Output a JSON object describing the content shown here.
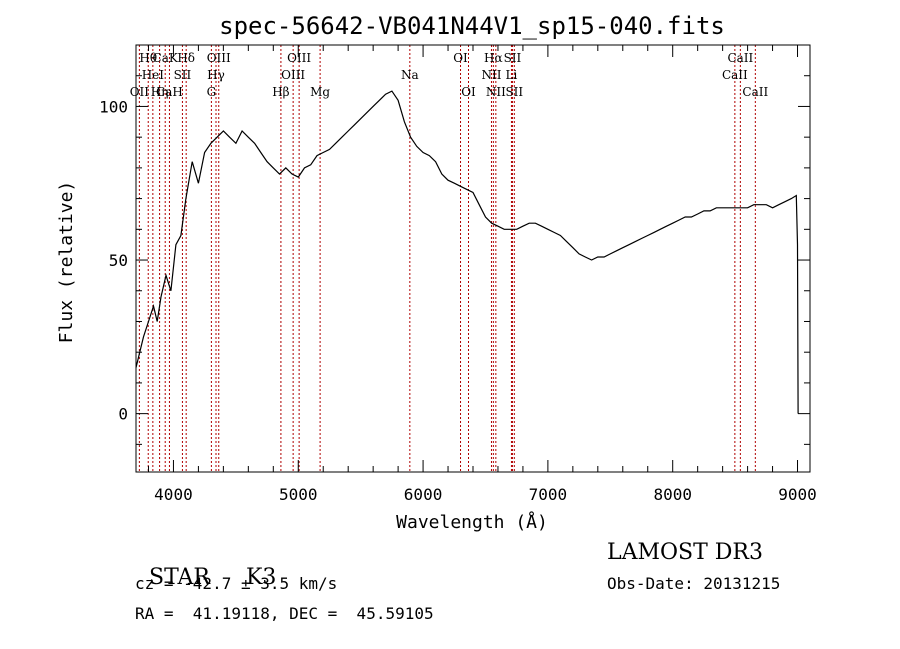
{
  "chart_data": {
    "type": "line",
    "title": "spec-56642-VB041N44V1_sp15-040.fits",
    "xlabel": "Wavelength (Å)",
    "ylabel": "Flux (relative)",
    "xlim": [
      3700,
      9100
    ],
    "ylim": [
      -19,
      120
    ],
    "xticks": [
      4000,
      5000,
      6000,
      7000,
      8000,
      9000
    ],
    "yticks": [
      0,
      50,
      100
    ],
    "grid": false,
    "series": [
      {
        "name": "spectrum",
        "x": [
          3700,
          3760,
          3800,
          3840,
          3870,
          3900,
          3940,
          3980,
          4020,
          4060,
          4100,
          4150,
          4200,
          4250,
          4300,
          4350,
          4400,
          4450,
          4500,
          4550,
          4600,
          4650,
          4700,
          4750,
          4800,
          4850,
          4900,
          4950,
          5000,
          5050,
          5100,
          5150,
          5200,
          5250,
          5300,
          5350,
          5400,
          5450,
          5500,
          5550,
          5600,
          5650,
          5700,
          5750,
          5800,
          5850,
          5900,
          5950,
          6000,
          6050,
          6100,
          6150,
          6200,
          6250,
          6300,
          6350,
          6400,
          6450,
          6500,
          6550,
          6600,
          6650,
          6700,
          6750,
          6800,
          6850,
          6900,
          6950,
          7000,
          7050,
          7100,
          7150,
          7200,
          7250,
          7300,
          7350,
          7400,
          7450,
          7500,
          7550,
          7600,
          7650,
          7700,
          7750,
          7800,
          7850,
          7900,
          7950,
          8000,
          8050,
          8100,
          8150,
          8200,
          8250,
          8300,
          8350,
          8400,
          8450,
          8500,
          8550,
          8600,
          8650,
          8700,
          8750,
          8800,
          8850,
          8900,
          8950,
          8990,
          9000,
          9005
        ],
        "y": [
          15,
          25,
          30,
          35,
          30,
          38,
          45,
          40,
          55,
          58,
          70,
          82,
          75,
          85,
          88,
          90,
          92,
          90,
          88,
          92,
          90,
          88,
          85,
          82,
          80,
          78,
          80,
          78,
          77,
          80,
          81,
          84,
          85,
          86,
          88,
          90,
          92,
          94,
          96,
          98,
          100,
          102,
          104,
          105,
          102,
          95,
          90,
          87,
          85,
          84,
          82,
          78,
          76,
          75,
          74,
          73,
          72,
          68,
          64,
          62,
          61,
          60,
          60,
          60,
          61,
          62,
          62,
          61,
          60,
          59,
          58,
          56,
          54,
          52,
          51,
          50,
          51,
          51,
          52,
          53,
          54,
          55,
          56,
          57,
          58,
          59,
          60,
          61,
          62,
          63,
          64,
          64,
          65,
          66,
          66,
          67,
          67,
          67,
          67,
          67,
          67,
          68,
          68,
          68,
          67,
          68,
          69,
          70,
          71,
          55,
          0
        ]
      }
    ],
    "line_markers": [
      {
        "label": "OII",
        "wavelength": 3727,
        "row": 2
      },
      {
        "label": "Hθ",
        "wavelength": 3798,
        "row": 0
      },
      {
        "label": "HeI",
        "wavelength": 3835,
        "row": 1
      },
      {
        "label": "Hη",
        "wavelength": 3889,
        "row": 2
      },
      {
        "label": "CaK",
        "wavelength": 3934,
        "row": 0
      },
      {
        "label": "CaH",
        "wavelength": 3968,
        "row": 2
      },
      {
        "label": "SII",
        "wavelength": 4072,
        "row": 1
      },
      {
        "label": "Hδ",
        "wavelength": 4102,
        "row": 0
      },
      {
        "label": "G",
        "wavelength": 4304,
        "row": 2
      },
      {
        "label": "Hγ",
        "wavelength": 4341,
        "row": 1
      },
      {
        "label": "OIII",
        "wavelength": 4363,
        "row": 0
      },
      {
        "label": "Hβ",
        "wavelength": 4861,
        "row": 2
      },
      {
        "label": "OIII",
        "wavelength": 4959,
        "row": 1
      },
      {
        "label": "OIII",
        "wavelength": 5007,
        "row": 0
      },
      {
        "label": "Mg",
        "wavelength": 5175,
        "row": 2
      },
      {
        "label": "Na",
        "wavelength": 5894,
        "row": 1
      },
      {
        "label": "OI",
        "wavelength": 6300,
        "row": 0
      },
      {
        "label": "OI",
        "wavelength": 6364,
        "row": 2
      },
      {
        "label": "NII",
        "wavelength": 6548,
        "row": 1
      },
      {
        "label": "Hα",
        "wavelength": 6563,
        "row": 0
      },
      {
        "label": "NII",
        "wavelength": 6583,
        "row": 2
      },
      {
        "label": "Li",
        "wavelength": 6708,
        "row": 1
      },
      {
        "label": "SII",
        "wavelength": 6716,
        "row": 0
      },
      {
        "label": "SII",
        "wavelength": 6731,
        "row": 2
      },
      {
        "label": "CaII",
        "wavelength": 8498,
        "row": 1
      },
      {
        "label": "CaII",
        "wavelength": 8542,
        "row": 0
      },
      {
        "label": "CaII",
        "wavelength": 8662,
        "row": 2
      }
    ]
  },
  "footer": {
    "class_label": "STAR",
    "subclass": "K3",
    "cz_line": "cz = -42.7 ± 3.5 km/s",
    "radec_line": "RA =  41.19118, DEC =  45.59105",
    "survey": "LAMOST DR3",
    "obs_date": "Obs-Date: 20131215"
  },
  "colors": {
    "line_marker": "#b00000",
    "spectrum": "#000000",
    "axes": "#000000"
  }
}
